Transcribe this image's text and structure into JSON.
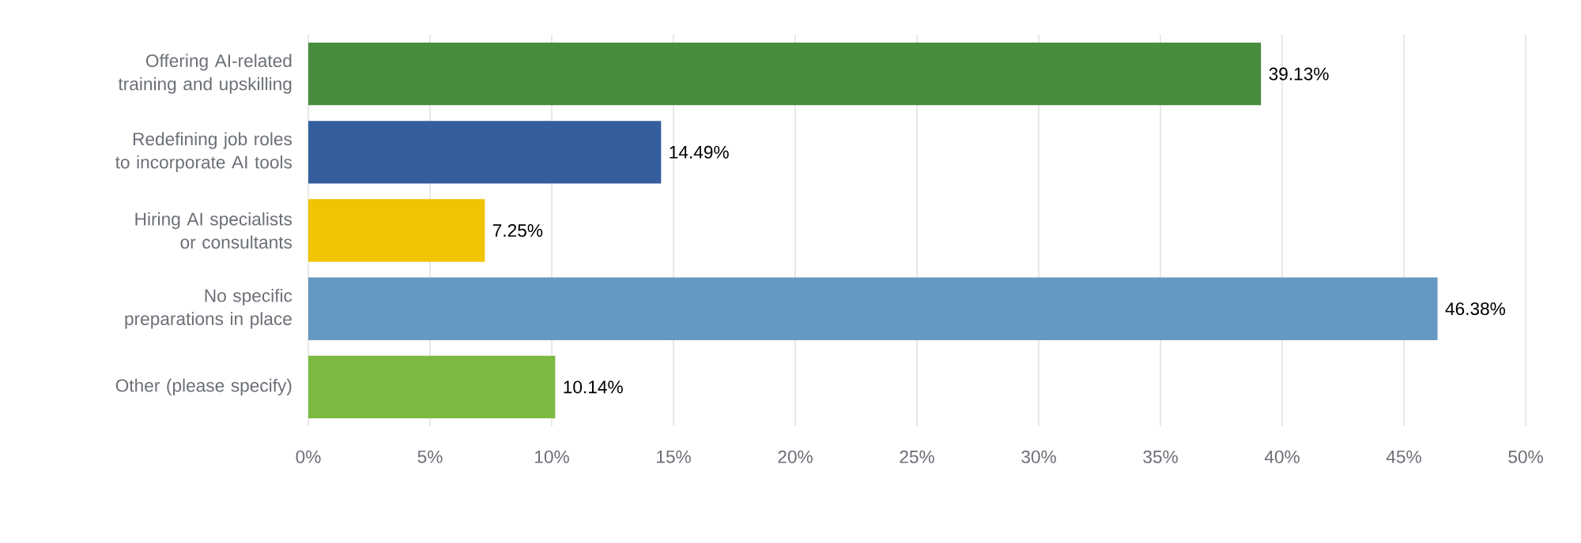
{
  "chart_data": {
    "type": "bar",
    "orientation": "horizontal",
    "categories": [
      "Offering AI-related training and upskilling",
      "Redefining job roles to incorporate AI tools",
      "Hiring AI specialists or consultants",
      "No specific preparations in place",
      "Other (please specify)"
    ],
    "values": [
      39.13,
      14.49,
      7.25,
      46.38,
      10.14
    ],
    "colors": [
      "#4a8c3f",
      "#355e9e",
      "#f0c400",
      "#6699c2",
      "#7ab942"
    ],
    "value_labels": [
      "39.13%",
      "14.49%",
      "7.25%",
      "46.38%",
      "10.14%"
    ],
    "xlim": [
      0,
      50
    ],
    "xticks": [
      {
        "value": 0,
        "label": "0%"
      },
      {
        "value": 5,
        "label": "5%"
      },
      {
        "value": 10,
        "label": "10%"
      },
      {
        "value": 15,
        "label": "15%"
      },
      {
        "value": 20,
        "label": "20%"
      },
      {
        "value": 25,
        "label": "25%"
      },
      {
        "value": 30,
        "label": "30%"
      },
      {
        "value": 35,
        "label": "35%"
      },
      {
        "value": 40,
        "label": "40%"
      },
      {
        "value": 45,
        "label": "45%"
      },
      {
        "value": 50,
        "label": "50%"
      }
    ],
    "grid": "x"
  }
}
